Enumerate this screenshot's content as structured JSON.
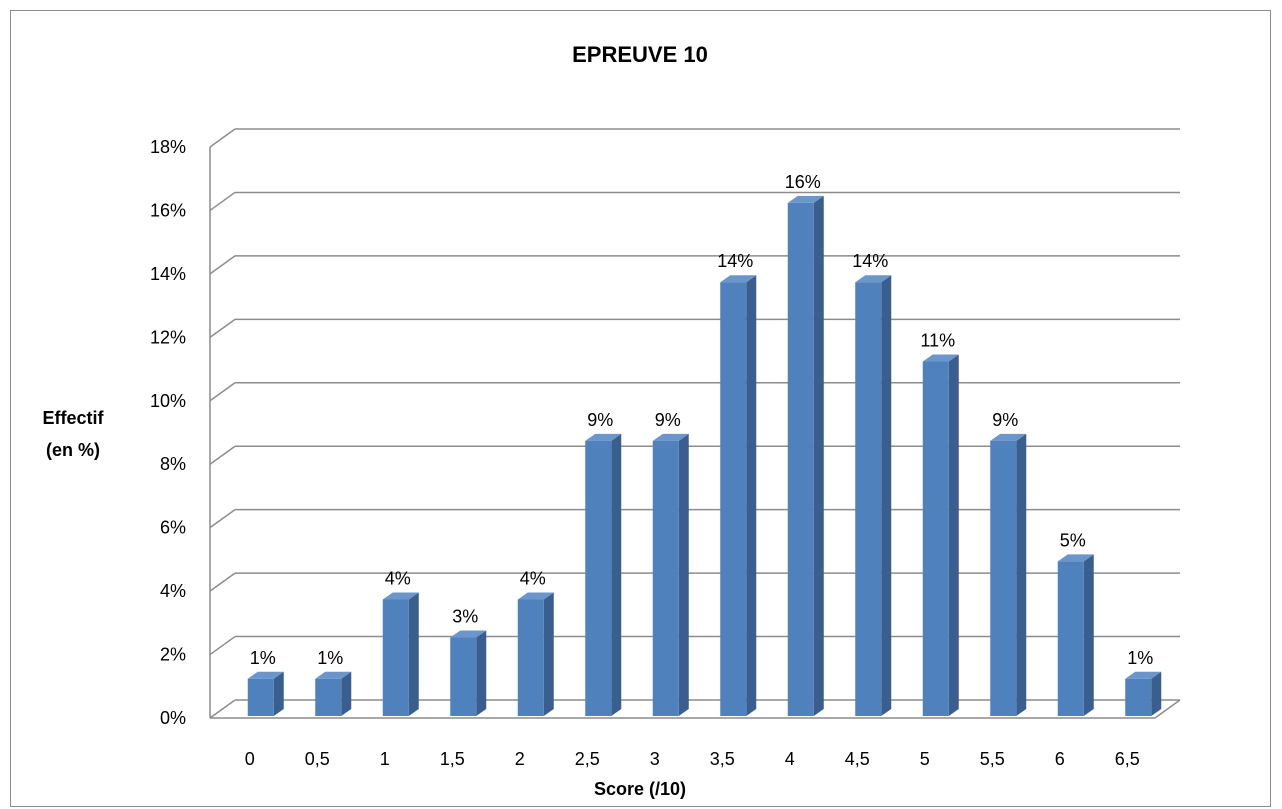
{
  "chart_data": {
    "type": "bar",
    "title": "EPREUVE 10",
    "xlabel": "Score (/10)",
    "ylabel_lines": [
      "Effectif",
      "(en %)"
    ],
    "categories": [
      "0",
      "0,5",
      "1",
      "1,5",
      "2",
      "2,5",
      "3",
      "3,5",
      "4",
      "4,5",
      "5",
      "5,5",
      "6",
      "6,5"
    ],
    "values": [
      1.3,
      1.3,
      3.8,
      2.6,
      3.8,
      8.8,
      8.8,
      13.8,
      16.3,
      13.8,
      11.3,
      8.8,
      5.0,
      1.3
    ],
    "data_labels": [
      "1%",
      "1%",
      "4%",
      "3%",
      "4%",
      "9%",
      "9%",
      "14%",
      "16%",
      "14%",
      "11%",
      "9%",
      "5%",
      "1%"
    ],
    "ylim": [
      0,
      18
    ],
    "yticks": [
      "0%",
      "2%",
      "4%",
      "6%",
      "8%",
      "10%",
      "12%",
      "14%",
      "16%",
      "18%"
    ],
    "grid": true,
    "legend": "none",
    "style": "3d-clustered-column"
  },
  "colors": {
    "bar_front": "#4f81bd",
    "bar_side": "#3a5f8e",
    "bar_top": "#6a96cc",
    "grid": "#8c8c8c"
  }
}
